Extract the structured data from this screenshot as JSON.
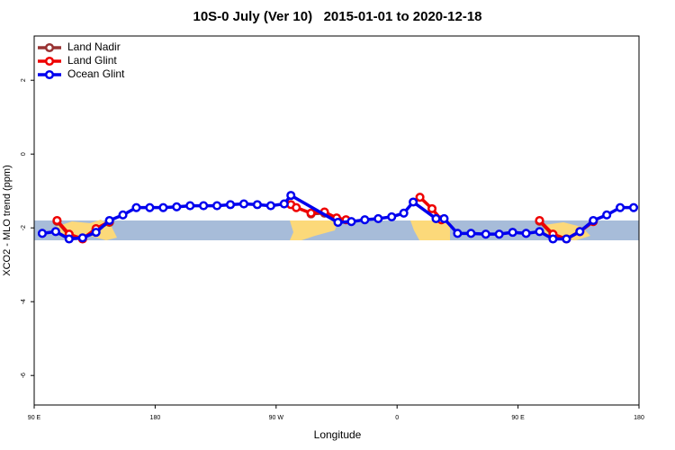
{
  "chart_data": {
    "type": "line",
    "title": "10S-0 July (Ver 10)   2015-01-01 to 2020-12-18",
    "x_label": "Longitude",
    "y_label": "XCO2 - MLO trend (ppm)",
    "xlim": [
      90,
      540
    ],
    "xticks": [
      {
        "value": 90,
        "label": "90 E"
      },
      180,
      {
        "value": 270,
        "label": "90 W"
      },
      {
        "value": 360,
        "label": "0"
      },
      {
        "value": 450,
        "label": "90 E"
      },
      {
        "value": 540,
        "label": "180"
      }
    ],
    "ylim": [
      -6.8,
      3.2
    ],
    "yticks": [
      2,
      0,
      -2,
      -4,
      -6
    ],
    "legend": "top-left",
    "series": [
      {
        "name": "Land Nadir",
        "color": "#993333",
        "x": [
          107,
          116,
          126,
          136,
          146,
          null,
          296,
          306,
          null,
          466,
          476
        ],
        "values": [
          -1.82,
          -2.2,
          -2.28,
          -2.05,
          -1.85,
          null,
          -1.62,
          -1.6,
          null,
          -1.82,
          -2.2
        ]
      },
      {
        "name": "Land Glint",
        "color": "#ee0000",
        "x": [
          107,
          116,
          126,
          136,
          146,
          null,
          281,
          285,
          296,
          306,
          315,
          322,
          null,
          377,
          386,
          393,
          null,
          466,
          476,
          486,
          496,
          506
        ],
        "values": [
          -1.8,
          -2.17,
          -2.3,
          -2.02,
          -1.83,
          null,
          -1.37,
          -1.45,
          -1.6,
          -1.57,
          -1.73,
          -1.78,
          null,
          -1.17,
          -1.48,
          -1.78,
          null,
          -1.8,
          -2.17,
          -2.3,
          -2.1,
          -1.83
        ]
      },
      {
        "name": "Ocean Glint",
        "color": "#0000ee",
        "x": [
          96,
          106,
          116,
          126,
          136,
          146,
          156,
          166,
          176,
          186,
          196,
          206,
          216,
          226,
          236,
          246,
          256,
          266,
          276,
          281,
          316,
          326,
          336,
          346,
          356,
          365,
          372,
          389,
          395,
          405,
          415,
          426,
          436,
          446,
          456,
          466,
          476,
          486,
          496,
          506,
          516,
          526,
          536
        ],
        "values": [
          -2.15,
          -2.1,
          -2.3,
          -2.27,
          -2.12,
          -1.8,
          -1.65,
          -1.45,
          -1.45,
          -1.45,
          -1.43,
          -1.4,
          -1.4,
          -1.4,
          -1.37,
          -1.35,
          -1.37,
          -1.4,
          -1.35,
          -1.12,
          -1.85,
          -1.83,
          -1.78,
          -1.75,
          -1.7,
          -1.6,
          -1.3,
          -1.75,
          -1.75,
          -2.15,
          -2.15,
          -2.17,
          -2.17,
          -2.12,
          -2.15,
          -2.1,
          -2.3,
          -2.3,
          -2.1,
          -1.8,
          -1.65,
          -1.45,
          -1.45
        ]
      }
    ]
  }
}
